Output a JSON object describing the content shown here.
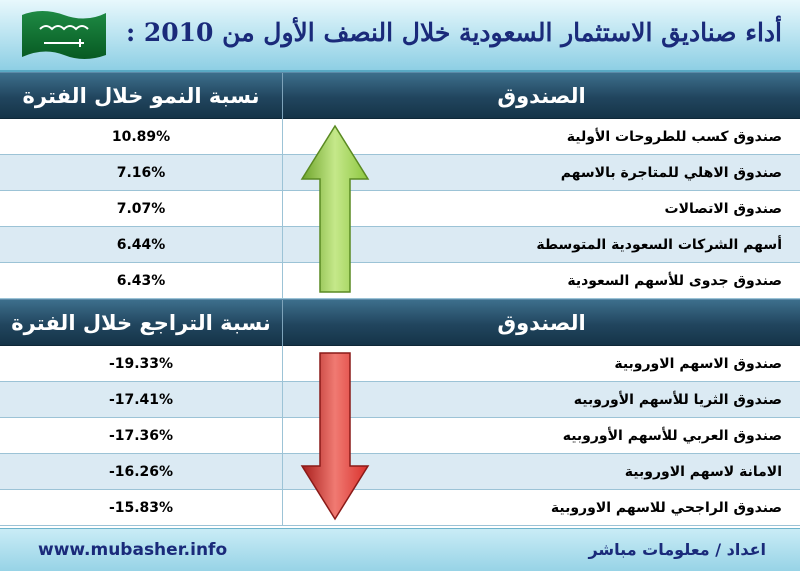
{
  "title": "أداء صناديق الاستثمار السعودية خلال النصف الأول  من 2010 :",
  "flag": {
    "icon": "saudi-flag-icon",
    "color": "#0a6b2b"
  },
  "chart_data": {
    "type": "table",
    "sections": [
      {
        "header_fund": "الصندوق",
        "header_value": "نسبة النمو خلال الفترة",
        "arrow": "up",
        "rows": [
          {
            "name": "صندوق كسب للطروحات الأولية",
            "value": "10.89%"
          },
          {
            "name": "صندوق الاهلي للمتاجرة بالاسهم",
            "value": "7.16%"
          },
          {
            "name": "صندوق الاتصالات",
            "value": "7.07%"
          },
          {
            "name": "أسهم الشركات السعودية المتوسطة",
            "value": "6.44%"
          },
          {
            "name": "صندوق جدوى للأسهم السعودية",
            "value": "6.43%"
          }
        ]
      },
      {
        "header_fund": "الصندوق",
        "header_value": "نسبة التراجع خلال الفترة",
        "arrow": "down",
        "rows": [
          {
            "name": "صندوق الاسهم الاوروبية",
            "value": "-19.33%"
          },
          {
            "name": "صندوق الثريا للأسهم الأوروبيه",
            "value": "-17.41%"
          },
          {
            "name": "صندوق العربي للأسهم الأوروبيه",
            "value": "-17.36%"
          },
          {
            "name": "الامانة لاسهم الاوروبية",
            "value": "-16.26%"
          },
          {
            "name": "صندوق الراجحي للاسهم الاوروبية",
            "value": "-15.83%"
          }
        ]
      }
    ]
  },
  "colors": {
    "up_arrow": "#8cc63f",
    "down_arrow": "#d9302c",
    "header_bg": "#21455e"
  },
  "footer": {
    "url": "www.mubasher.info",
    "credit": "اعداد / معلومات مباشر"
  }
}
